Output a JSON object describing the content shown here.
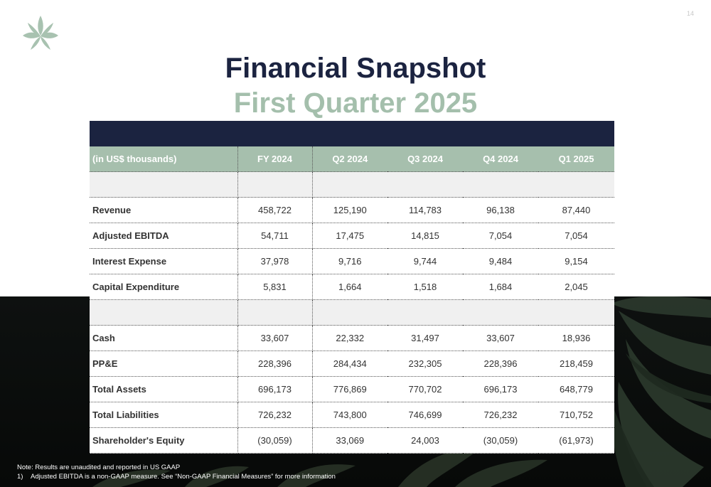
{
  "page_number": "14",
  "title": "Financial Snapshot",
  "subtitle": "First Quarter 2025",
  "table": {
    "header": {
      "label": "(in US$ thousands)",
      "columns": [
        "FY 2024",
        "Q2 2024",
        "Q3 2024",
        "Q4 2024",
        "Q1 2025"
      ]
    },
    "rows_section_1": [
      {
        "label": "Revenue",
        "values": [
          "458,722",
          "125,190",
          "114,783",
          "96,138",
          "87,440"
        ]
      },
      {
        "label": "Adjusted EBITDA",
        "values": [
          "54,711",
          "17,475",
          "14,815",
          "7,054",
          "7,054"
        ]
      },
      {
        "label": "Interest Expense",
        "values": [
          "37,978",
          "9,716",
          "9,744",
          "9,484",
          "9,154"
        ]
      },
      {
        "label": "Capital Expenditure",
        "values": [
          "5,831",
          "1,664",
          "1,518",
          "1,684",
          "2,045"
        ]
      }
    ],
    "rows_section_2": [
      {
        "label": "Cash",
        "values": [
          "33,607",
          "22,332",
          "31,497",
          "33,607",
          "18,936"
        ]
      },
      {
        "label": "PP&E",
        "values": [
          "228,396",
          "284,434",
          "232,305",
          "228,396",
          "218,459"
        ]
      },
      {
        "label": "Total Assets",
        "values": [
          "696,173",
          "776,869",
          "770,702",
          "696,173",
          "648,779"
        ]
      },
      {
        "label": "Total Liabilities",
        "values": [
          "726,232",
          "743,800",
          "746,699",
          "726,232",
          "710,752"
        ]
      },
      {
        "label": "Shareholder's Equity",
        "values": [
          "(30,059)",
          "33,069",
          "24,003",
          "(30,059)",
          "(61,973)"
        ]
      }
    ]
  },
  "notes": {
    "line1": "Note: Results are unaudited and reported in US GAAP",
    "footnote_number": "1)",
    "footnote_text": "Adjusted EBITDA is a non-GAAP measure. See “Non-GAAP Financial Measures” for more information"
  },
  "colors": {
    "navy": "#1b2340",
    "sage": "#a6bfad",
    "subtitle_sage": "#a4bfac"
  },
  "icons": {
    "logo": "leaf-logo-icon"
  }
}
